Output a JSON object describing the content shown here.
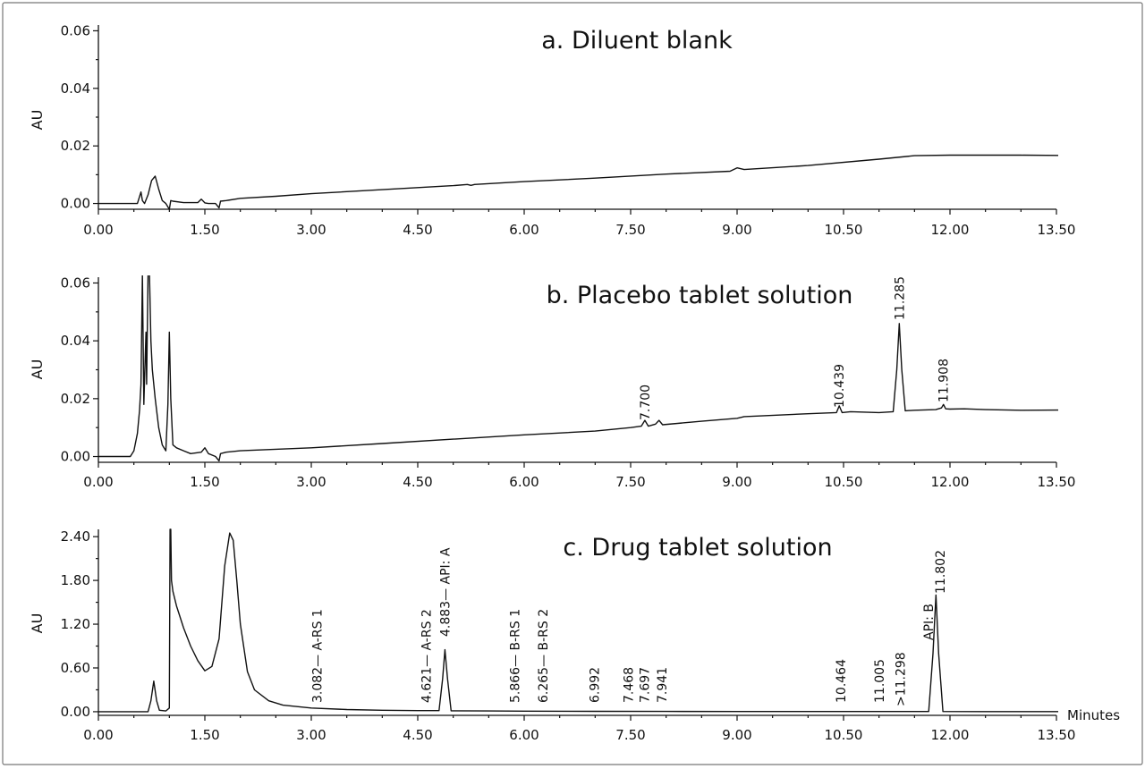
{
  "chart_data": [
    {
      "type": "line",
      "title": "a. Diluent blank",
      "ylabel": "AU",
      "xlabel": "",
      "xlim": [
        0,
        13.5
      ],
      "ylim": [
        -0.002,
        0.062
      ],
      "xticks": [
        "0.00",
        "1.50",
        "3.00",
        "4.50",
        "6.00",
        "7.50",
        "9.00",
        "10.50",
        "12.00",
        "13.50"
      ],
      "yticks": [
        "0.00",
        "0.02",
        "0.04",
        "0.06"
      ],
      "series": [
        {
          "x": [
            0,
            0.55,
            0.6,
            0.62,
            0.65,
            0.7,
            0.75,
            0.8,
            0.85,
            0.9,
            0.95,
            1.0,
            1.02,
            1.05,
            1.2,
            1.4,
            1.45,
            1.5,
            1.55,
            1.65,
            1.7,
            1.72,
            1.8,
            2.0,
            2.5,
            3.0,
            4.0,
            5.0,
            5.2,
            5.25,
            5.3,
            6.0,
            7.0,
            8.0,
            8.9,
            9.0,
            9.1,
            10.0,
            11.0,
            11.5,
            12.0,
            13.0,
            13.55
          ],
          "y": [
            0.0,
            0.0,
            0.004,
            0.001,
            0.0,
            0.003,
            0.008,
            0.0095,
            0.005,
            0.001,
            0.0,
            -0.002,
            0.001,
            0.0008,
            0.0003,
            0.0003,
            0.0015,
            0.0002,
            0.0,
            0.0,
            -0.0015,
            0.0008,
            0.001,
            0.0018,
            0.0025,
            0.0034,
            0.0048,
            0.0062,
            0.0066,
            0.0063,
            0.0066,
            0.0076,
            0.0088,
            0.0102,
            0.0112,
            0.0124,
            0.0118,
            0.0132,
            0.0154,
            0.0166,
            0.0168,
            0.0168,
            0.0167
          ]
        }
      ],
      "peak_labels": []
    },
    {
      "type": "line",
      "title": "b. Placebo tablet solution",
      "ylabel": "AU",
      "xlabel": "",
      "xlim": [
        0,
        13.5
      ],
      "ylim": [
        -0.002,
        0.062
      ],
      "xticks": [
        "0.00",
        "1.50",
        "3.00",
        "4.50",
        "6.00",
        "7.50",
        "9.00",
        "10.50",
        "12.00",
        "13.50"
      ],
      "yticks": [
        "0.00",
        "0.02",
        "0.04",
        "0.06"
      ],
      "series": [
        {
          "x": [
            0,
            0.45,
            0.5,
            0.55,
            0.58,
            0.6,
            0.62,
            0.64,
            0.66,
            0.67,
            0.68,
            0.7,
            0.72,
            0.74,
            0.76,
            0.8,
            0.85,
            0.9,
            0.95,
            0.98,
            1.0,
            1.02,
            1.05,
            1.1,
            1.2,
            1.3,
            1.45,
            1.5,
            1.55,
            1.65,
            1.7,
            1.72,
            1.8,
            2.0,
            3.0,
            4.0,
            5.0,
            6.0,
            7.0,
            7.5,
            7.65,
            7.7,
            7.75,
            7.85,
            7.9,
            7.95,
            8.5,
            9.0,
            9.1,
            10.0,
            10.4,
            10.44,
            10.48,
            10.6,
            11.0,
            11.2,
            11.25,
            11.285,
            11.32,
            11.37,
            11.5,
            11.8,
            11.88,
            11.908,
            11.94,
            12.0,
            12.2,
            12.5,
            13.0,
            13.55
          ],
          "y": [
            0.0,
            0.0,
            0.002,
            0.008,
            0.016,
            0.025,
            0.063,
            0.018,
            0.035,
            0.043,
            0.025,
            0.063,
            0.063,
            0.04,
            0.03,
            0.02,
            0.01,
            0.004,
            0.002,
            0.018,
            0.043,
            0.02,
            0.004,
            0.003,
            0.002,
            0.001,
            0.0015,
            0.003,
            0.001,
            0.0,
            -0.0015,
            0.001,
            0.0015,
            0.002,
            0.003,
            0.0045,
            0.006,
            0.0075,
            0.0088,
            0.01,
            0.0105,
            0.0125,
            0.0105,
            0.0112,
            0.0125,
            0.011,
            0.0122,
            0.0132,
            0.0138,
            0.0148,
            0.0152,
            0.0175,
            0.0152,
            0.0155,
            0.0152,
            0.0155,
            0.03,
            0.046,
            0.03,
            0.0158,
            0.016,
            0.0162,
            0.0168,
            0.018,
            0.0165,
            0.0164,
            0.0165,
            0.0162,
            0.016,
            0.0161
          ]
        }
      ],
      "peak_labels": [
        "7.700",
        "10.439",
        "11.285",
        "11.908"
      ]
    },
    {
      "type": "line",
      "title": "c. Drug tablet solution",
      "ylabel": "AU",
      "xlabel": "Minutes",
      "xlim": [
        0,
        13.5
      ],
      "ylim": [
        -0.05,
        2.5
      ],
      "xticks": [
        "0.00",
        "1.50",
        "3.00",
        "4.50",
        "6.00",
        "7.50",
        "9.00",
        "10.50",
        "12.00",
        "13.50"
      ],
      "yticks": [
        "0.00",
        "0.60",
        "1.20",
        "1.80",
        "2.40"
      ],
      "series": [
        {
          "x": [
            0,
            0.7,
            0.74,
            0.78,
            0.82,
            0.86,
            0.95,
            1.0,
            1.01,
            1.02,
            1.03,
            1.05,
            1.1,
            1.2,
            1.3,
            1.4,
            1.5,
            1.6,
            1.7,
            1.78,
            1.85,
            1.9,
            1.95,
            2.0,
            2.1,
            2.2,
            2.4,
            2.6,
            3.0,
            3.5,
            4.0,
            4.5,
            4.8,
            4.85,
            4.883,
            4.92,
            4.97,
            5.5,
            6.0,
            7.0,
            8.0,
            9.0,
            10.0,
            11.0,
            11.7,
            11.76,
            11.802,
            11.84,
            11.9,
            12.5,
            13.55
          ],
          "y": [
            0.0,
            0.0,
            0.15,
            0.42,
            0.15,
            0.02,
            0.01,
            0.05,
            2.5,
            2.5,
            1.8,
            1.65,
            1.45,
            1.15,
            0.9,
            0.7,
            0.56,
            0.62,
            1.0,
            2.0,
            2.45,
            2.35,
            1.8,
            1.2,
            0.55,
            0.3,
            0.15,
            0.09,
            0.05,
            0.03,
            0.02,
            0.015,
            0.015,
            0.45,
            0.85,
            0.45,
            0.012,
            0.01,
            0.008,
            0.005,
            0.004,
            0.003,
            0.003,
            0.003,
            0.003,
            0.8,
            1.6,
            0.8,
            0.003,
            0.002,
            0.002
          ]
        }
      ],
      "peak_labels": [
        "3.082— A-RS 1",
        "4.621— A-RS 2",
        "4.883— API: A",
        "5.866— B-RS 1",
        "6.265— B-RS 2",
        "6.992",
        "7.468",
        "7.697",
        "7.941",
        "10.464",
        "11.005",
        ">11.298",
        "API: B",
        "11.802"
      ]
    }
  ]
}
